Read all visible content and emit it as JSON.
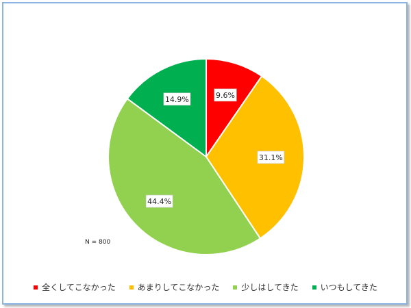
{
  "chart_data": {
    "type": "pie",
    "categories": [
      "全くしてこなかった",
      "あまりしてこなかった",
      "少しはしてきた",
      "いつもしてきた"
    ],
    "values": [
      9.6,
      31.1,
      44.4,
      14.9
    ],
    "labels": [
      "9.6%",
      "31.1%",
      "44.4%",
      "14.9%"
    ],
    "colors": [
      "#ff0000",
      "#ffc000",
      "#92d050",
      "#00b050"
    ],
    "start_angle_deg": 0,
    "direction": "clockwise",
    "legend_position": "bottom",
    "note": "N = 800"
  }
}
